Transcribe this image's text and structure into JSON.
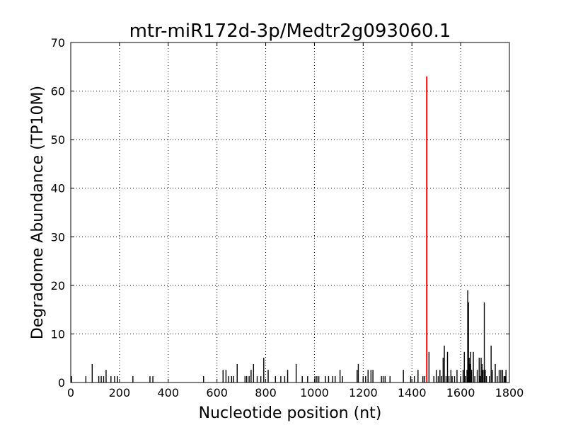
{
  "chart_data": {
    "type": "bar",
    "title": "mtr-miR172d-3p/Medtr2g093060.1",
    "xlabel": "Nucleotide position (nt)",
    "ylabel": "Degradome Abundance (TP10M)",
    "xlim": [
      0,
      1800
    ],
    "ylim": [
      0,
      70
    ],
    "xticks": [
      0,
      200,
      400,
      600,
      800,
      1000,
      1200,
      1400,
      1600,
      1800
    ],
    "yticks": [
      0,
      10,
      20,
      30,
      40,
      50,
      60,
      70
    ],
    "grid": true,
    "series": [
      {
        "color": "#000000",
        "points": [
          [
            3,
            1.3
          ],
          [
            62,
            1.3
          ],
          [
            88,
            3.8
          ],
          [
            115,
            1.3
          ],
          [
            125,
            1.3
          ],
          [
            135,
            1.3
          ],
          [
            145,
            2.6
          ],
          [
            165,
            1.3
          ],
          [
            180,
            1.3
          ],
          [
            192,
            1.3
          ],
          [
            255,
            1.3
          ],
          [
            325,
            1.3
          ],
          [
            337,
            1.3
          ],
          [
            545,
            1.3
          ],
          [
            625,
            2.6
          ],
          [
            637,
            2.6
          ],
          [
            648,
            1.3
          ],
          [
            660,
            1.3
          ],
          [
            668,
            1.3
          ],
          [
            683,
            3.8
          ],
          [
            715,
            1.3
          ],
          [
            722,
            1.3
          ],
          [
            732,
            1.3
          ],
          [
            740,
            2.6
          ],
          [
            750,
            3.8
          ],
          [
            765,
            1.3
          ],
          [
            780,
            1.3
          ],
          [
            792,
            5.1
          ],
          [
            810,
            2.6
          ],
          [
            840,
            1.3
          ],
          [
            862,
            1.3
          ],
          [
            878,
            1.3
          ],
          [
            890,
            2.6
          ],
          [
            925,
            3.8
          ],
          [
            950,
            1.3
          ],
          [
            972,
            1.3
          ],
          [
            1002,
            1.3
          ],
          [
            1010,
            1.3
          ],
          [
            1018,
            1.3
          ],
          [
            1045,
            1.3
          ],
          [
            1058,
            1.3
          ],
          [
            1075,
            1.3
          ],
          [
            1085,
            1.3
          ],
          [
            1105,
            2.6
          ],
          [
            1115,
            1.3
          ],
          [
            1175,
            2.6
          ],
          [
            1180,
            3.8
          ],
          [
            1200,
            1.3
          ],
          [
            1210,
            1.3
          ],
          [
            1220,
            2.6
          ],
          [
            1232,
            2.6
          ],
          [
            1240,
            2.6
          ],
          [
            1275,
            1.3
          ],
          [
            1282,
            1.3
          ],
          [
            1290,
            1.3
          ],
          [
            1310,
            1.3
          ],
          [
            1365,
            2.6
          ],
          [
            1395,
            1.3
          ],
          [
            1410,
            1.3
          ],
          [
            1425,
            2.6
          ],
          [
            1445,
            1.3
          ],
          [
            1452,
            1.3
          ],
          [
            1470,
            6.3
          ],
          [
            1490,
            1.3
          ],
          [
            1500,
            2.6
          ],
          [
            1508,
            1.3
          ],
          [
            1515,
            2.6
          ],
          [
            1522,
            1.3
          ],
          [
            1528,
            5.1
          ],
          [
            1533,
            7.6
          ],
          [
            1540,
            1.3
          ],
          [
            1546,
            6.3
          ],
          [
            1552,
            1.3
          ],
          [
            1560,
            2.6
          ],
          [
            1565,
            1.3
          ],
          [
            1575,
            1.3
          ],
          [
            1585,
            2.6
          ],
          [
            1600,
            1.3
          ],
          [
            1610,
            2.6
          ],
          [
            1615,
            6.3
          ],
          [
            1620,
            1.3
          ],
          [
            1626,
            2.6
          ],
          [
            1629,
            19.0
          ],
          [
            1632,
            16.5
          ],
          [
            1635,
            5.1
          ],
          [
            1638,
            3.8
          ],
          [
            1641,
            6.3
          ],
          [
            1645,
            2.6
          ],
          [
            1652,
            6.3
          ],
          [
            1658,
            1.3
          ],
          [
            1668,
            2.6
          ],
          [
            1676,
            5.1
          ],
          [
            1680,
            1.3
          ],
          [
            1684,
            5.1
          ],
          [
            1688,
            3.8
          ],
          [
            1692,
            2.6
          ],
          [
            1697,
            16.5
          ],
          [
            1701,
            2.6
          ],
          [
            1706,
            1.3
          ],
          [
            1718,
            1.3
          ],
          [
            1725,
            7.6
          ],
          [
            1730,
            2.6
          ],
          [
            1742,
            3.8
          ],
          [
            1750,
            1.3
          ],
          [
            1758,
            2.6
          ],
          [
            1765,
            2.6
          ],
          [
            1772,
            2.6
          ],
          [
            1778,
            1.3
          ],
          [
            1782,
            1.3
          ],
          [
            1786,
            2.6
          ]
        ]
      },
      {
        "color": "#ff0000",
        "points": [
          [
            1461,
            63
          ]
        ]
      }
    ]
  }
}
